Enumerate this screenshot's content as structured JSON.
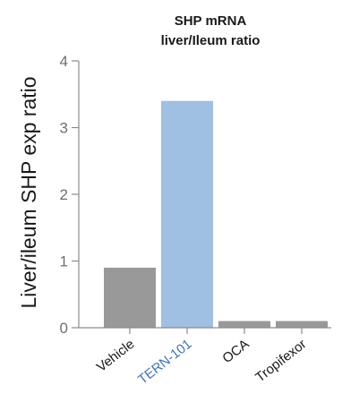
{
  "chart_data": {
    "type": "bar",
    "title_lines": [
      "SHP mRNA",
      "liver/Ileum ratio"
    ],
    "xlabel": "",
    "ylabel": "Liver/ileum SHP exp ratio",
    "categories": [
      "Vehicle",
      "TERN-101",
      "OCA",
      "Tropifexor"
    ],
    "values": [
      0.9,
      3.4,
      0.1,
      0.1
    ],
    "bar_colors": [
      "#999999",
      "#9fbfe3",
      "#999999",
      "#999999"
    ],
    "category_label_colors": [
      "#1a1a1a",
      "#3f72c4",
      "#1a1a1a",
      "#1a1a1a"
    ],
    "ylim": [
      0,
      4
    ],
    "yticks": [
      0,
      1,
      2,
      3,
      4
    ],
    "grid": false,
    "legend": "none"
  }
}
